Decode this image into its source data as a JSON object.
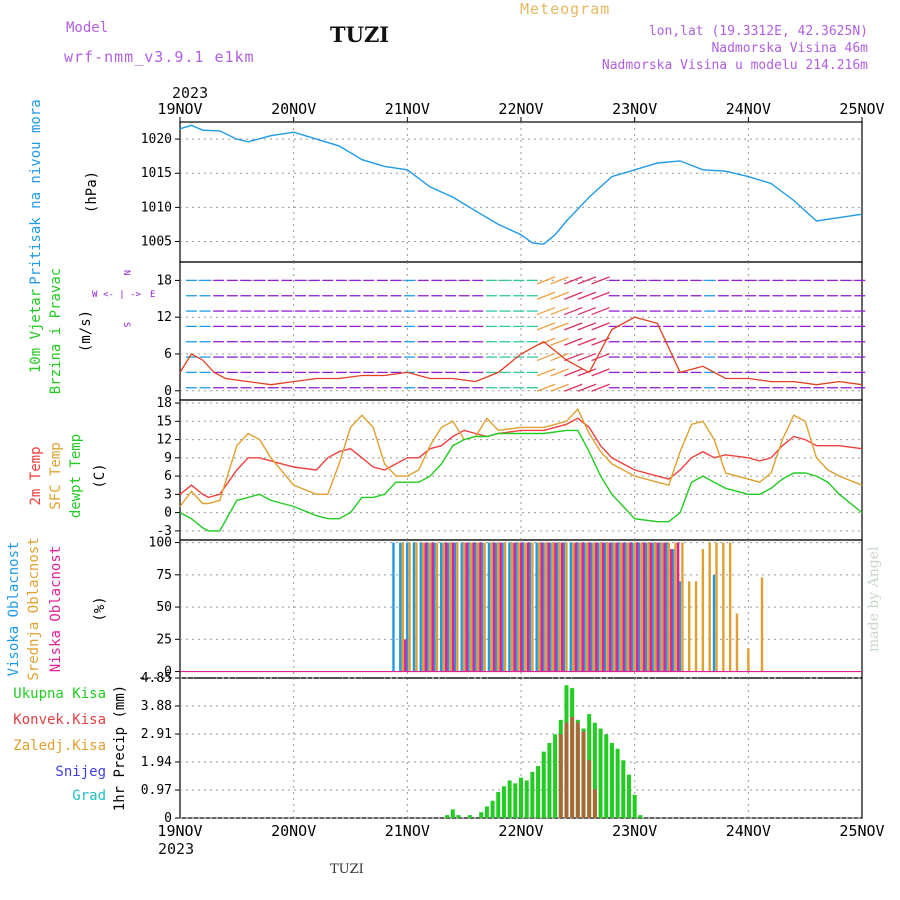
{
  "header": {
    "model_label": "Model",
    "model_name": "wrf-nmm_v3.9.1 e1km",
    "station": "TUZI",
    "product": "Meteogram",
    "lonlat": "lon,lat (19.3312E, 42.3625N)",
    "elevation": "Nadmorska Visina 46m",
    "elevation_model": "Nadmorska Visina u modelu 214.216m",
    "year": "2023",
    "footer_station": "TUZI",
    "watermark": "made by Angel"
  },
  "colors": {
    "pressure": "#1e9be8",
    "temp2m": "#f04040",
    "sfc": "#e0a030",
    "dewpt": "#22cc22",
    "vis_high": "#1e9be8",
    "vis_mid": "#e0a030",
    "vis_low": "#e0209a",
    "precip_total": "#22cc22",
    "precip_conv": "#e04040",
    "snow": "#4040e0",
    "grad": "#20c0c0",
    "wind_purple": "#9020d0"
  },
  "chart_data": [
    {
      "type": "line",
      "panel": "pressure",
      "xdays": [
        "19NOV",
        "20NOV",
        "21NOV",
        "22NOV",
        "23NOV",
        "24NOV",
        "25NOV"
      ],
      "ylabel_left": "Pritisak na nivou mora",
      "ylabel": "(hPa)",
      "ylim": [
        1002,
        1022.5
      ],
      "yticks": [
        1005,
        1010,
        1015,
        1020
      ],
      "x": [
        0,
        0.1,
        0.2,
        0.35,
        0.5,
        0.6,
        0.8,
        1.0,
        1.2,
        1.4,
        1.6,
        1.8,
        2.0,
        2.2,
        2.4,
        2.6,
        2.8,
        3.0,
        3.1,
        3.2,
        3.3,
        3.4,
        3.6,
        3.8,
        4.0,
        4.2,
        4.4,
        4.6,
        4.8,
        5.0,
        5.2,
        5.4,
        5.6,
        5.8,
        6.0
      ],
      "series": [
        {
          "values": [
            1021.5,
            1022,
            1021.3,
            1021.2,
            1020,
            1019.6,
            1020.5,
            1021,
            1020,
            1019,
            1017,
            1016,
            1015.5,
            1013,
            1011.5,
            1009.5,
            1007.5,
            1006,
            1004.8,
            1004.6,
            1006,
            1008,
            1011.5,
            1014.5,
            1015.5,
            1016.5,
            1016.8,
            1015.5,
            1015.3,
            1014.5,
            1013.5,
            1011,
            1008,
            1008.5,
            1009
          ]
        }
      ]
    },
    {
      "type": "scatter",
      "panel": "wind",
      "ylabel_left": "10m Vjetar Brzina i Pravac",
      "ylabel": "(m/s)",
      "ylim": [
        -1.5,
        21
      ],
      "yticks": [
        0,
        6,
        12,
        18
      ],
      "compass": [
        "N",
        "<- | ->",
        "W",
        "E",
        "S"
      ],
      "x": [
        0,
        0.1,
        0.2,
        0.3,
        0.4,
        0.6,
        0.8,
        1.0,
        1.2,
        1.4,
        1.6,
        1.8,
        2.0,
        2.2,
        2.4,
        2.6,
        2.8,
        3.0,
        3.2,
        3.4,
        3.6,
        3.8,
        4.0,
        4.2,
        4.4,
        4.6,
        4.8,
        5.0,
        5.2,
        5.4,
        5.6,
        5.8,
        6.0
      ],
      "series": [
        {
          "values": [
            3,
            6,
            5,
            3,
            2,
            1.5,
            1,
            1.5,
            2,
            2,
            2.5,
            2.5,
            3,
            2,
            2,
            1.5,
            3,
            6,
            8,
            5,
            3,
            10,
            12,
            11,
            3,
            4,
            2,
            2,
            1.5,
            1.5,
            1,
            1.5,
            1
          ]
        }
      ]
    },
    {
      "type": "line",
      "panel": "temperature",
      "ylabel_left": [
        "2m Temp",
        "SFC Temp",
        "dewpt Temp"
      ],
      "ylabel": "(C)",
      "ylim": [
        -4.5,
        18.5
      ],
      "yticks": [
        -3,
        0,
        3,
        6,
        9,
        12,
        15,
        18
      ],
      "x": [
        0,
        0.1,
        0.2,
        0.25,
        0.35,
        0.5,
        0.6,
        0.7,
        0.8,
        1.0,
        1.2,
        1.3,
        1.4,
        1.5,
        1.6,
        1.7,
        1.8,
        1.9,
        2.0,
        2.1,
        2.2,
        2.3,
        2.4,
        2.5,
        2.6,
        2.7,
        2.8,
        3.0,
        3.2,
        3.4,
        3.5,
        3.6,
        3.7,
        3.8,
        4.0,
        4.2,
        4.3,
        4.4,
        4.5,
        4.6,
        4.7,
        4.8,
        5.0,
        5.1,
        5.2,
        5.3,
        5.4,
        5.5,
        5.6,
        5.7,
        5.8,
        6.0
      ],
      "series": [
        {
          "name": "2m Temp",
          "values": [
            3,
            4.5,
            3,
            2.5,
            3,
            7,
            9,
            9,
            8.5,
            7.5,
            7,
            9,
            10,
            10.5,
            9,
            7.5,
            7,
            8,
            9,
            9,
            10.5,
            11,
            12.5,
            13.5,
            13,
            12.5,
            13,
            13.5,
            13.5,
            14.5,
            15.5,
            14,
            11,
            9,
            7,
            6,
            5.5,
            7,
            9,
            10,
            9,
            9.5,
            9,
            8.5,
            9,
            11,
            12.5,
            12,
            11,
            11,
            11,
            10.5
          ]
        },
        {
          "name": "SFC Temp",
          "values": [
            1,
            3.5,
            1.5,
            1.5,
            2,
            11,
            13,
            12,
            9,
            4.5,
            3,
            3,
            8,
            14,
            16,
            14,
            8,
            6,
            6,
            7,
            11,
            14,
            15,
            12,
            12.5,
            15.5,
            13.5,
            14,
            14,
            15,
            17,
            13,
            10,
            8,
            6,
            5,
            4.5,
            10,
            14.5,
            15,
            12,
            6.5,
            5.5,
            5,
            6.5,
            12,
            16,
            15,
            9,
            7,
            6,
            4.5
          ]
        },
        {
          "name": "dewpt Temp",
          "values": [
            0,
            -1,
            -2.5,
            -3,
            -3,
            2,
            2.5,
            3,
            2,
            1,
            -0.5,
            -1,
            -1,
            0,
            2.5,
            2.5,
            3,
            5,
            5,
            5,
            6,
            8,
            11,
            12,
            12.5,
            12.5,
            13,
            13,
            13,
            13.5,
            13.5,
            10,
            6,
            3,
            -1,
            -1.5,
            -1.5,
            0,
            5,
            6,
            5,
            4,
            3,
            3,
            4,
            5.5,
            6.5,
            6.5,
            6,
            5,
            3,
            0
          ]
        }
      ]
    },
    {
      "type": "bar",
      "panel": "cloud",
      "ylabel_left": [
        "Visoka Oblacnost",
        "Srednja Oblacnost",
        "Niska Oblacnost"
      ],
      "ylabel": "(%)",
      "ylim": [
        -5,
        102
      ],
      "yticks": [
        0,
        25,
        50,
        75,
        100
      ],
      "x": [
        1.9,
        1.96,
        2.02,
        2.08,
        2.14,
        2.2,
        2.26,
        2.32,
        2.38,
        2.44,
        2.5,
        2.56,
        2.62,
        2.68,
        2.74,
        2.8,
        2.86,
        2.92,
        2.98,
        3.04,
        3.1,
        3.16,
        3.22,
        3.28,
        3.34,
        3.4,
        3.46,
        3.52,
        3.58,
        3.64,
        3.7,
        3.76,
        3.82,
        3.88,
        3.94,
        4.0,
        4.06,
        4.12,
        4.18,
        4.24,
        4.3,
        4.36,
        4.42,
        4.48,
        4.54,
        4.6,
        4.66,
        4.72,
        4.78,
        4.84,
        4.9,
        4.96,
        5.0,
        5.06,
        5.12
      ],
      "series": [
        {
          "name": "Visoka Oblacnost",
          "values": [
            100,
            100,
            100,
            100,
            100,
            100,
            100,
            100,
            100,
            100,
            100,
            100,
            100,
            100,
            100,
            100,
            100,
            100,
            100,
            100,
            100,
            100,
            100,
            100,
            100,
            100,
            100,
            100,
            100,
            100,
            100,
            100,
            100,
            100,
            100,
            100,
            100,
            100,
            100,
            100,
            100,
            95,
            70,
            0,
            0,
            0,
            0,
            75,
            0,
            0,
            0,
            0,
            0,
            0,
            0
          ]
        },
        {
          "name": "Srednja Oblacnost",
          "values": [
            0,
            100,
            100,
            100,
            100,
            100,
            100,
            100,
            100,
            100,
            100,
            100,
            100,
            100,
            100,
            100,
            100,
            100,
            100,
            100,
            100,
            100,
            100,
            100,
            100,
            100,
            100,
            100,
            100,
            100,
            100,
            100,
            100,
            100,
            100,
            100,
            100,
            100,
            100,
            100,
            100,
            100,
            100,
            70,
            70,
            95,
            100,
            100,
            100,
            100,
            45,
            0,
            18,
            0,
            73
          ]
        },
        {
          "name": "Niska Oblacnost",
          "values": [
            0,
            25,
            0,
            0,
            100,
            100,
            0,
            100,
            100,
            0,
            100,
            100,
            100,
            0,
            100,
            100,
            0,
            100,
            100,
            100,
            0,
            100,
            100,
            100,
            100,
            0,
            100,
            100,
            100,
            100,
            100,
            100,
            100,
            100,
            100,
            100,
            100,
            100,
            100,
            100,
            95,
            100,
            0,
            0,
            0,
            0,
            0,
            0,
            0,
            0,
            0,
            0,
            0,
            0,
            0
          ]
        }
      ]
    },
    {
      "type": "bar",
      "panel": "precip",
      "legend": [
        "Ukupna Kisa",
        "Konvek.Kisa",
        "Zaledj.Kisa",
        "Snijeg",
        "Grad"
      ],
      "ylabel": "1hr Precip (mm)",
      "ylim": [
        0,
        4.85
      ],
      "yticks": [
        0,
        0.97,
        1.94,
        2.91,
        3.88,
        4.85
      ],
      "x": [
        2.35,
        2.4,
        2.45,
        2.55,
        2.65,
        2.7,
        2.75,
        2.8,
        2.85,
        2.9,
        2.95,
        3.0,
        3.05,
        3.1,
        3.15,
        3.2,
        3.25,
        3.3,
        3.35,
        3.4,
        3.45,
        3.5,
        3.55,
        3.6,
        3.65,
        3.7,
        3.75,
        3.8,
        3.85,
        3.9,
        3.95,
        4.0,
        4.05,
        4.1,
        4.15,
        4.2,
        4.25,
        4.3,
        4.35,
        4.4,
        4.45,
        4.5,
        4.55
      ],
      "series": [
        {
          "name": "Ukupna Kisa",
          "values": [
            0.1,
            0.3,
            0.1,
            0.1,
            0.2,
            0.4,
            0.6,
            0.9,
            1.1,
            1.3,
            1.2,
            1.4,
            1.3,
            1.6,
            1.8,
            2.3,
            2.6,
            2.9,
            3.4,
            4.6,
            4.5,
            3.4,
            3.1,
            3.6,
            3.3,
            3.1,
            2.9,
            2.6,
            2.4,
            2.0,
            1.5,
            0.8,
            0.1,
            0,
            0,
            0,
            0,
            0,
            0,
            0,
            0,
            0,
            0
          ]
        },
        {
          "name": "Konvek.Kisa",
          "values": [
            0,
            0,
            0,
            0,
            0,
            0,
            0,
            0,
            0,
            0,
            0,
            0,
            0,
            0,
            0,
            0,
            0,
            0,
            2.9,
            3.3,
            3.5,
            3.3,
            3.0,
            2.0,
            1.0,
            0,
            0,
            0,
            0,
            0,
            0,
            0,
            0,
            0,
            0,
            0,
            0,
            0,
            0,
            0,
            0,
            0,
            0
          ]
        }
      ]
    }
  ]
}
